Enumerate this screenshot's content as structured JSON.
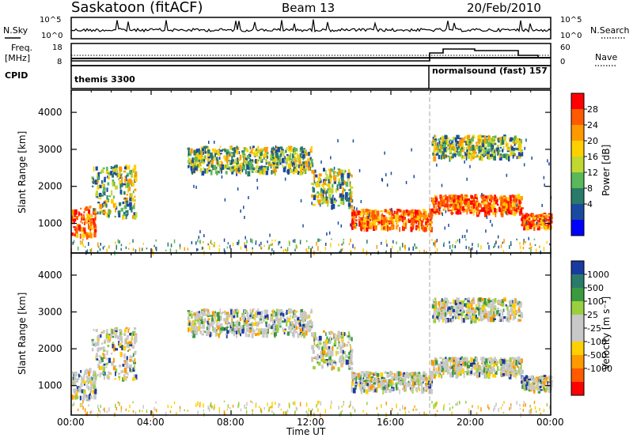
{
  "header": {
    "title": "Saskatoon (fitACF)",
    "beam": "Beam 13",
    "date": "20/Feb/2010"
  },
  "left_labels": {
    "nsky": "N.Sky",
    "freq_line1": "Freq.",
    "freq_line2": "[MHz]",
    "cpid": "CPID"
  },
  "right_labels": {
    "nsearch": "N.Search",
    "nave": "Nave"
  },
  "cpid_segments": [
    "themis 3300",
    "normalsound (fast) 157"
  ],
  "top_axes": {
    "noise_ticks": [
      "10^5",
      "10^0"
    ],
    "freq_ticks": [
      "18",
      "8"
    ],
    "nave_ticks": [
      "60",
      "0"
    ]
  },
  "colorbars": {
    "power": {
      "label": "Power [dB]",
      "ticks": [
        "28",
        "24",
        "20",
        "16",
        "12",
        "8",
        "4"
      ],
      "colors": [
        "#ff0000",
        "#ff5a00",
        "#ff9900",
        "#ffd000",
        "#c0d830",
        "#5ab85a",
        "#2a7a6a",
        "#1a4aa0",
        "#0000ff"
      ]
    },
    "velocity": {
      "label": "Velocity [m s⁻¹]",
      "ticks": [
        "1000",
        "500",
        "100",
        "25",
        "-25",
        "-100",
        "-500",
        "-1000"
      ],
      "colors": [
        "#1a3aa0",
        "#2a7a6a",
        "#3a9a40",
        "#9ad040",
        "#c8c8c8",
        "#c8c8c8",
        "#ffd000",
        "#ff9900",
        "#ff5a00",
        "#ff0000"
      ]
    }
  },
  "chart_data": [
    {
      "type": "heatmap",
      "name": "power",
      "ylabel": "Slant Range [km]",
      "xlabel": "Time UT",
      "x_ticks": [
        "00:00",
        "04:00",
        "08:00",
        "12:00",
        "16:00",
        "20:00",
        "00:00"
      ],
      "y_ticks": [
        "1000",
        "2000",
        "3000",
        "4000"
      ],
      "xlim_hours": [
        0,
        24
      ],
      "ylim_km": [
        200,
        4600
      ],
      "mode_change_hour": 18.0,
      "echo_bands": [
        {
          "t": [
            0.0,
            1.2
          ],
          "r": [
            700,
            1500
          ],
          "level": "high"
        },
        {
          "t": [
            1.0,
            3.2
          ],
          "r": [
            1200,
            2600
          ],
          "level": "mid"
        },
        {
          "t": [
            5.8,
            12.0
          ],
          "r": [
            2400,
            3100
          ],
          "level": "mid"
        },
        {
          "t": [
            12.0,
            14.0
          ],
          "r": [
            1500,
            2500
          ],
          "level": "mid"
        },
        {
          "t": [
            14.0,
            18.0
          ],
          "r": [
            900,
            1400
          ],
          "level": "high"
        },
        {
          "t": [
            18.0,
            22.5
          ],
          "r": [
            1300,
            1800
          ],
          "level": "high"
        },
        {
          "t": [
            18.0,
            22.5
          ],
          "r": [
            2800,
            3400
          ],
          "level": "mid"
        },
        {
          "t": [
            22.5,
            24.0
          ],
          "r": [
            900,
            1300
          ],
          "level": "high"
        }
      ]
    },
    {
      "type": "heatmap",
      "name": "velocity",
      "ylabel": "Slant Range [km]",
      "xlabel": "Time UT",
      "x_ticks": [
        "00:00",
        "04:00",
        "08:00",
        "12:00",
        "16:00",
        "20:00",
        "00:00"
      ],
      "y_ticks": [
        "1000",
        "2000",
        "3000",
        "4000"
      ],
      "xlim_hours": [
        0,
        24
      ],
      "ylim_km": [
        200,
        4600
      ],
      "mode_change_hour": 18.0,
      "dominant_value": "ground scatter (-25 to 25)"
    }
  ]
}
